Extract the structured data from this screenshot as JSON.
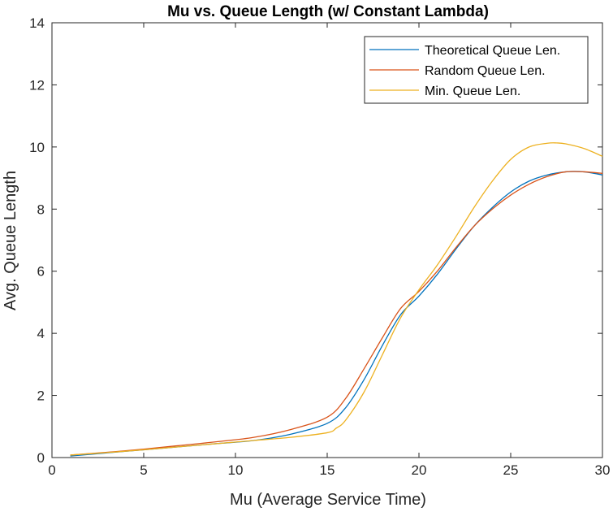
{
  "chart_data": {
    "type": "line",
    "title": "Mu vs. Queue Length (w/ Constant Lambda)",
    "xlabel": "Mu (Average Service Time)",
    "ylabel": "Avg. Queue Length",
    "xlim": [
      0,
      30
    ],
    "ylim": [
      0,
      14
    ],
    "xticks": [
      0,
      5,
      10,
      15,
      20,
      25,
      30
    ],
    "yticks": [
      0,
      2,
      4,
      6,
      8,
      10,
      12,
      14
    ],
    "grid": false,
    "legend_position": "top-right",
    "series": [
      {
        "name": "Theoretical Queue Len.",
        "color": "#0072BD",
        "x": [
          1,
          3,
          5,
          7,
          9,
          11,
          13,
          15,
          16,
          17,
          18,
          19,
          20,
          21,
          22,
          23,
          24,
          25,
          26,
          27,
          28,
          29,
          30
        ],
        "y": [
          0.05,
          0.15,
          0.25,
          0.35,
          0.45,
          0.55,
          0.75,
          1.1,
          1.6,
          2.5,
          3.6,
          4.6,
          5.2,
          5.9,
          6.7,
          7.45,
          8.05,
          8.55,
          8.9,
          9.1,
          9.2,
          9.2,
          9.1
        ]
      },
      {
        "name": "Random Queue Len.",
        "color": "#D95319",
        "x": [
          1,
          3,
          5,
          7,
          9,
          11,
          13,
          15,
          16,
          17,
          18,
          19,
          20,
          21,
          22,
          23,
          24,
          25,
          26,
          27,
          28,
          29,
          30
        ],
        "y": [
          0.08,
          0.17,
          0.27,
          0.39,
          0.51,
          0.65,
          0.9,
          1.3,
          1.9,
          2.85,
          3.85,
          4.8,
          5.35,
          6.0,
          6.75,
          7.45,
          8.0,
          8.45,
          8.8,
          9.05,
          9.2,
          9.2,
          9.15
        ]
      },
      {
        "name": "Min. Queue Len.",
        "color": "#EDB120",
        "x": [
          1,
          3,
          5,
          7,
          9,
          11,
          13,
          15,
          15.5,
          16,
          17,
          18,
          19,
          20,
          21,
          22,
          23,
          24,
          25,
          26,
          27,
          27.5,
          28,
          29,
          30
        ],
        "y": [
          0.08,
          0.16,
          0.25,
          0.35,
          0.45,
          0.55,
          0.65,
          0.8,
          0.95,
          1.2,
          2.1,
          3.3,
          4.5,
          5.4,
          6.2,
          7.1,
          8.05,
          8.9,
          9.6,
          10.0,
          10.12,
          10.13,
          10.1,
          9.95,
          9.7
        ]
      }
    ]
  }
}
